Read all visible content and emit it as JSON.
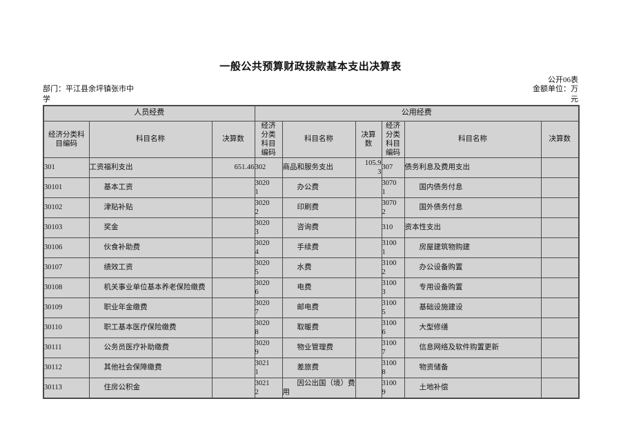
{
  "page": {
    "title": "一般公共预算财政拨款基本支出决算表",
    "sheet_code": "公开06表",
    "department_label": "部门：平江县余坪镇张市中学",
    "unit_label": "金额单位：万元"
  },
  "colors": {
    "cell_fill": "#d3d3d3",
    "value_cell_fill": "#ffffff",
    "border": "#4a4a4a",
    "text": "#111111"
  },
  "table": {
    "groups": [
      {
        "label": "人员经费"
      },
      {
        "label": "公用经费"
      }
    ],
    "column_headers": [
      "经济分类科目编码",
      "科目名称",
      "决算数",
      "经济分类科目编码",
      "科目名称",
      "决算数",
      "经济分类科目编码",
      "科目名称",
      "决算数"
    ],
    "rows": [
      {
        "cells": [
          {
            "code": "301",
            "name": "工资福利支出",
            "value": "651.46",
            "indent": false
          },
          {
            "code": "302",
            "name": "商品和服务支出",
            "value": "105.93",
            "indent": false
          },
          {
            "code": "307",
            "name": "债务利息及费用支出",
            "value": "",
            "indent": false
          }
        ]
      },
      {
        "cells": [
          {
            "code": "30101",
            "name": "基本工资",
            "value": "",
            "indent": true
          },
          {
            "code": "30201",
            "name": "办公费",
            "value": "",
            "indent": true
          },
          {
            "code": "30701",
            "name": "国内债务付息",
            "value": "",
            "indent": true
          }
        ]
      },
      {
        "cells": [
          {
            "code": "30102",
            "name": "津贴补贴",
            "value": "",
            "indent": true
          },
          {
            "code": "30202",
            "name": "印刷费",
            "value": "",
            "indent": true
          },
          {
            "code": "30702",
            "name": "国外债务付息",
            "value": "",
            "indent": true
          }
        ]
      },
      {
        "cells": [
          {
            "code": "30103",
            "name": "奖金",
            "value": "",
            "indent": true
          },
          {
            "code": "30203",
            "name": "咨询费",
            "value": "",
            "indent": true
          },
          {
            "code": "310",
            "name": "资本性支出",
            "value": "",
            "indent": false
          }
        ]
      },
      {
        "cells": [
          {
            "code": "30106",
            "name": "伙食补助费",
            "value": "",
            "indent": true
          },
          {
            "code": "30204",
            "name": "手续费",
            "value": "",
            "indent": true
          },
          {
            "code": "31001",
            "name": "房屋建筑物购建",
            "value": "",
            "indent": true
          }
        ]
      },
      {
        "cells": [
          {
            "code": "30107",
            "name": "绩效工资",
            "value": "",
            "indent": true
          },
          {
            "code": "30205",
            "name": "水费",
            "value": "",
            "indent": true
          },
          {
            "code": "31002",
            "name": "办公设备购置",
            "value": "",
            "indent": true
          }
        ]
      },
      {
        "cells": [
          {
            "code": "30108",
            "name": "机关事业单位基本养老保险缴费",
            "value": "",
            "indent": true
          },
          {
            "code": "30206",
            "name": "电费",
            "value": "",
            "indent": true
          },
          {
            "code": "31003",
            "name": "专用设备购置",
            "value": "",
            "indent": true
          }
        ]
      },
      {
        "cells": [
          {
            "code": "30109",
            "name": "职业年金缴费",
            "value": "",
            "indent": true
          },
          {
            "code": "30207",
            "name": "邮电费",
            "value": "",
            "indent": true
          },
          {
            "code": "31005",
            "name": "基础设施建设",
            "value": "",
            "indent": true
          }
        ]
      },
      {
        "cells": [
          {
            "code": "30110",
            "name": "职工基本医疗保险缴费",
            "value": "",
            "indent": true
          },
          {
            "code": "30208",
            "name": "取暖费",
            "value": "",
            "indent": true
          },
          {
            "code": "31006",
            "name": "大型修缮",
            "value": "",
            "indent": true
          }
        ]
      },
      {
        "cells": [
          {
            "code": "30111",
            "name": "公务员医疗补助缴费",
            "value": "",
            "indent": true
          },
          {
            "code": "30209",
            "name": "物业管理费",
            "value": "",
            "indent": true
          },
          {
            "code": "31007",
            "name": "信息网络及软件购置更新",
            "value": "",
            "indent": true
          }
        ]
      },
      {
        "cells": [
          {
            "code": "30112",
            "name": "其他社会保障缴费",
            "value": "",
            "indent": true
          },
          {
            "code": "30211",
            "name": "差旅费",
            "value": "",
            "indent": true
          },
          {
            "code": "31008",
            "name": "物资储备",
            "value": "",
            "indent": true
          }
        ]
      },
      {
        "cells": [
          {
            "code": "30113",
            "name": "住房公积金",
            "value": "",
            "indent": true
          },
          {
            "code": "30212",
            "name": "因公出国（境）费用",
            "value": "",
            "indent": true
          },
          {
            "code": "31009",
            "name": "土地补偿",
            "value": "",
            "indent": true
          }
        ]
      }
    ]
  }
}
